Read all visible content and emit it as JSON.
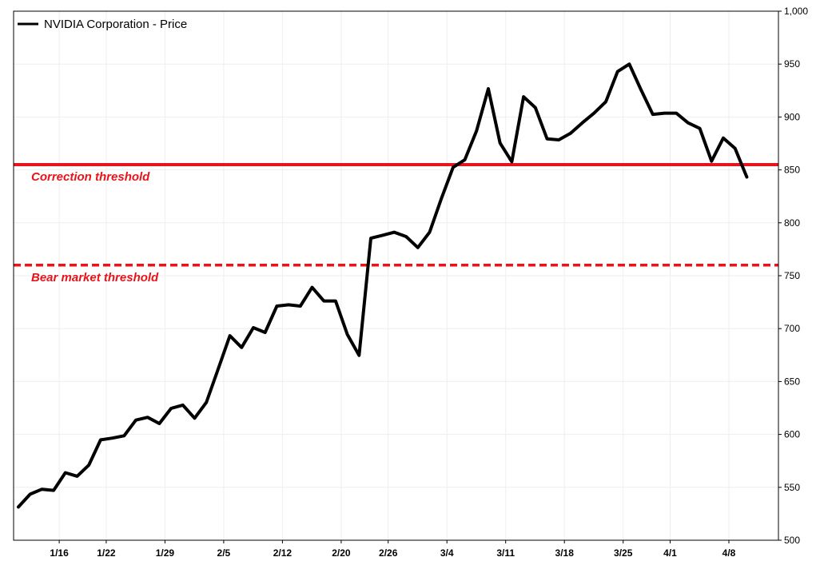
{
  "chart_data": {
    "type": "line",
    "title": "",
    "xlabel": "",
    "ylabel": "",
    "ylim": [
      500,
      1000
    ],
    "yticks": [
      500,
      550,
      600,
      650,
      700,
      750,
      800,
      850,
      900,
      950,
      1000
    ],
    "ytick_labels": [
      "500",
      "550",
      "600",
      "650",
      "700",
      "750",
      "800",
      "850",
      "900",
      "950",
      "1,000"
    ],
    "x_tick_labels": [
      "1/16",
      "1/22",
      "1/29",
      "2/5",
      "2/12",
      "2/20",
      "2/26",
      "3/4",
      "3/11",
      "3/18",
      "3/25",
      "4/1",
      "4/8"
    ],
    "x_tick_index": [
      3,
      7,
      12,
      17,
      22,
      27,
      31,
      36,
      41,
      46,
      51,
      55,
      60
    ],
    "grid": true,
    "legend_position": "top-left",
    "series": [
      {
        "name": "NVIDIA Corporation - Price",
        "color": "#000000",
        "values": [
          531.4,
          543.5,
          548.2,
          547.1,
          563.8,
          560.5,
          571.1,
          594.9,
          596.5,
          598.7,
          613.5,
          616.2,
          610.3,
          624.6,
          627.7,
          615.3,
          630.3,
          661.6,
          693.3,
          682.2,
          700.9,
          696.4,
          721.3,
          722.5,
          721.3,
          739.0,
          726.1,
          726.1,
          694.5,
          674.7,
          785.4,
          788.2,
          791.1,
          787.0,
          776.6,
          791.1,
          822.8,
          852.4,
          859.6,
          887.0,
          926.7,
          875.3,
          857.7,
          919.1,
          908.9,
          879.4,
          878.4,
          884.6,
          894.5,
          903.6,
          914.4,
          942.9,
          950.0,
          925.6,
          902.5,
          903.6,
          903.6,
          894.5,
          889.2,
          858.2,
          880.1,
          870.4,
          843.3
        ]
      }
    ],
    "reference_lines": [
      {
        "label": "Correction threshold",
        "value": 855,
        "style": "solid",
        "color": "#e8141b"
      },
      {
        "label": "Bear market threshold",
        "value": 760,
        "style": "dashed",
        "color": "#e8141b"
      }
    ]
  }
}
